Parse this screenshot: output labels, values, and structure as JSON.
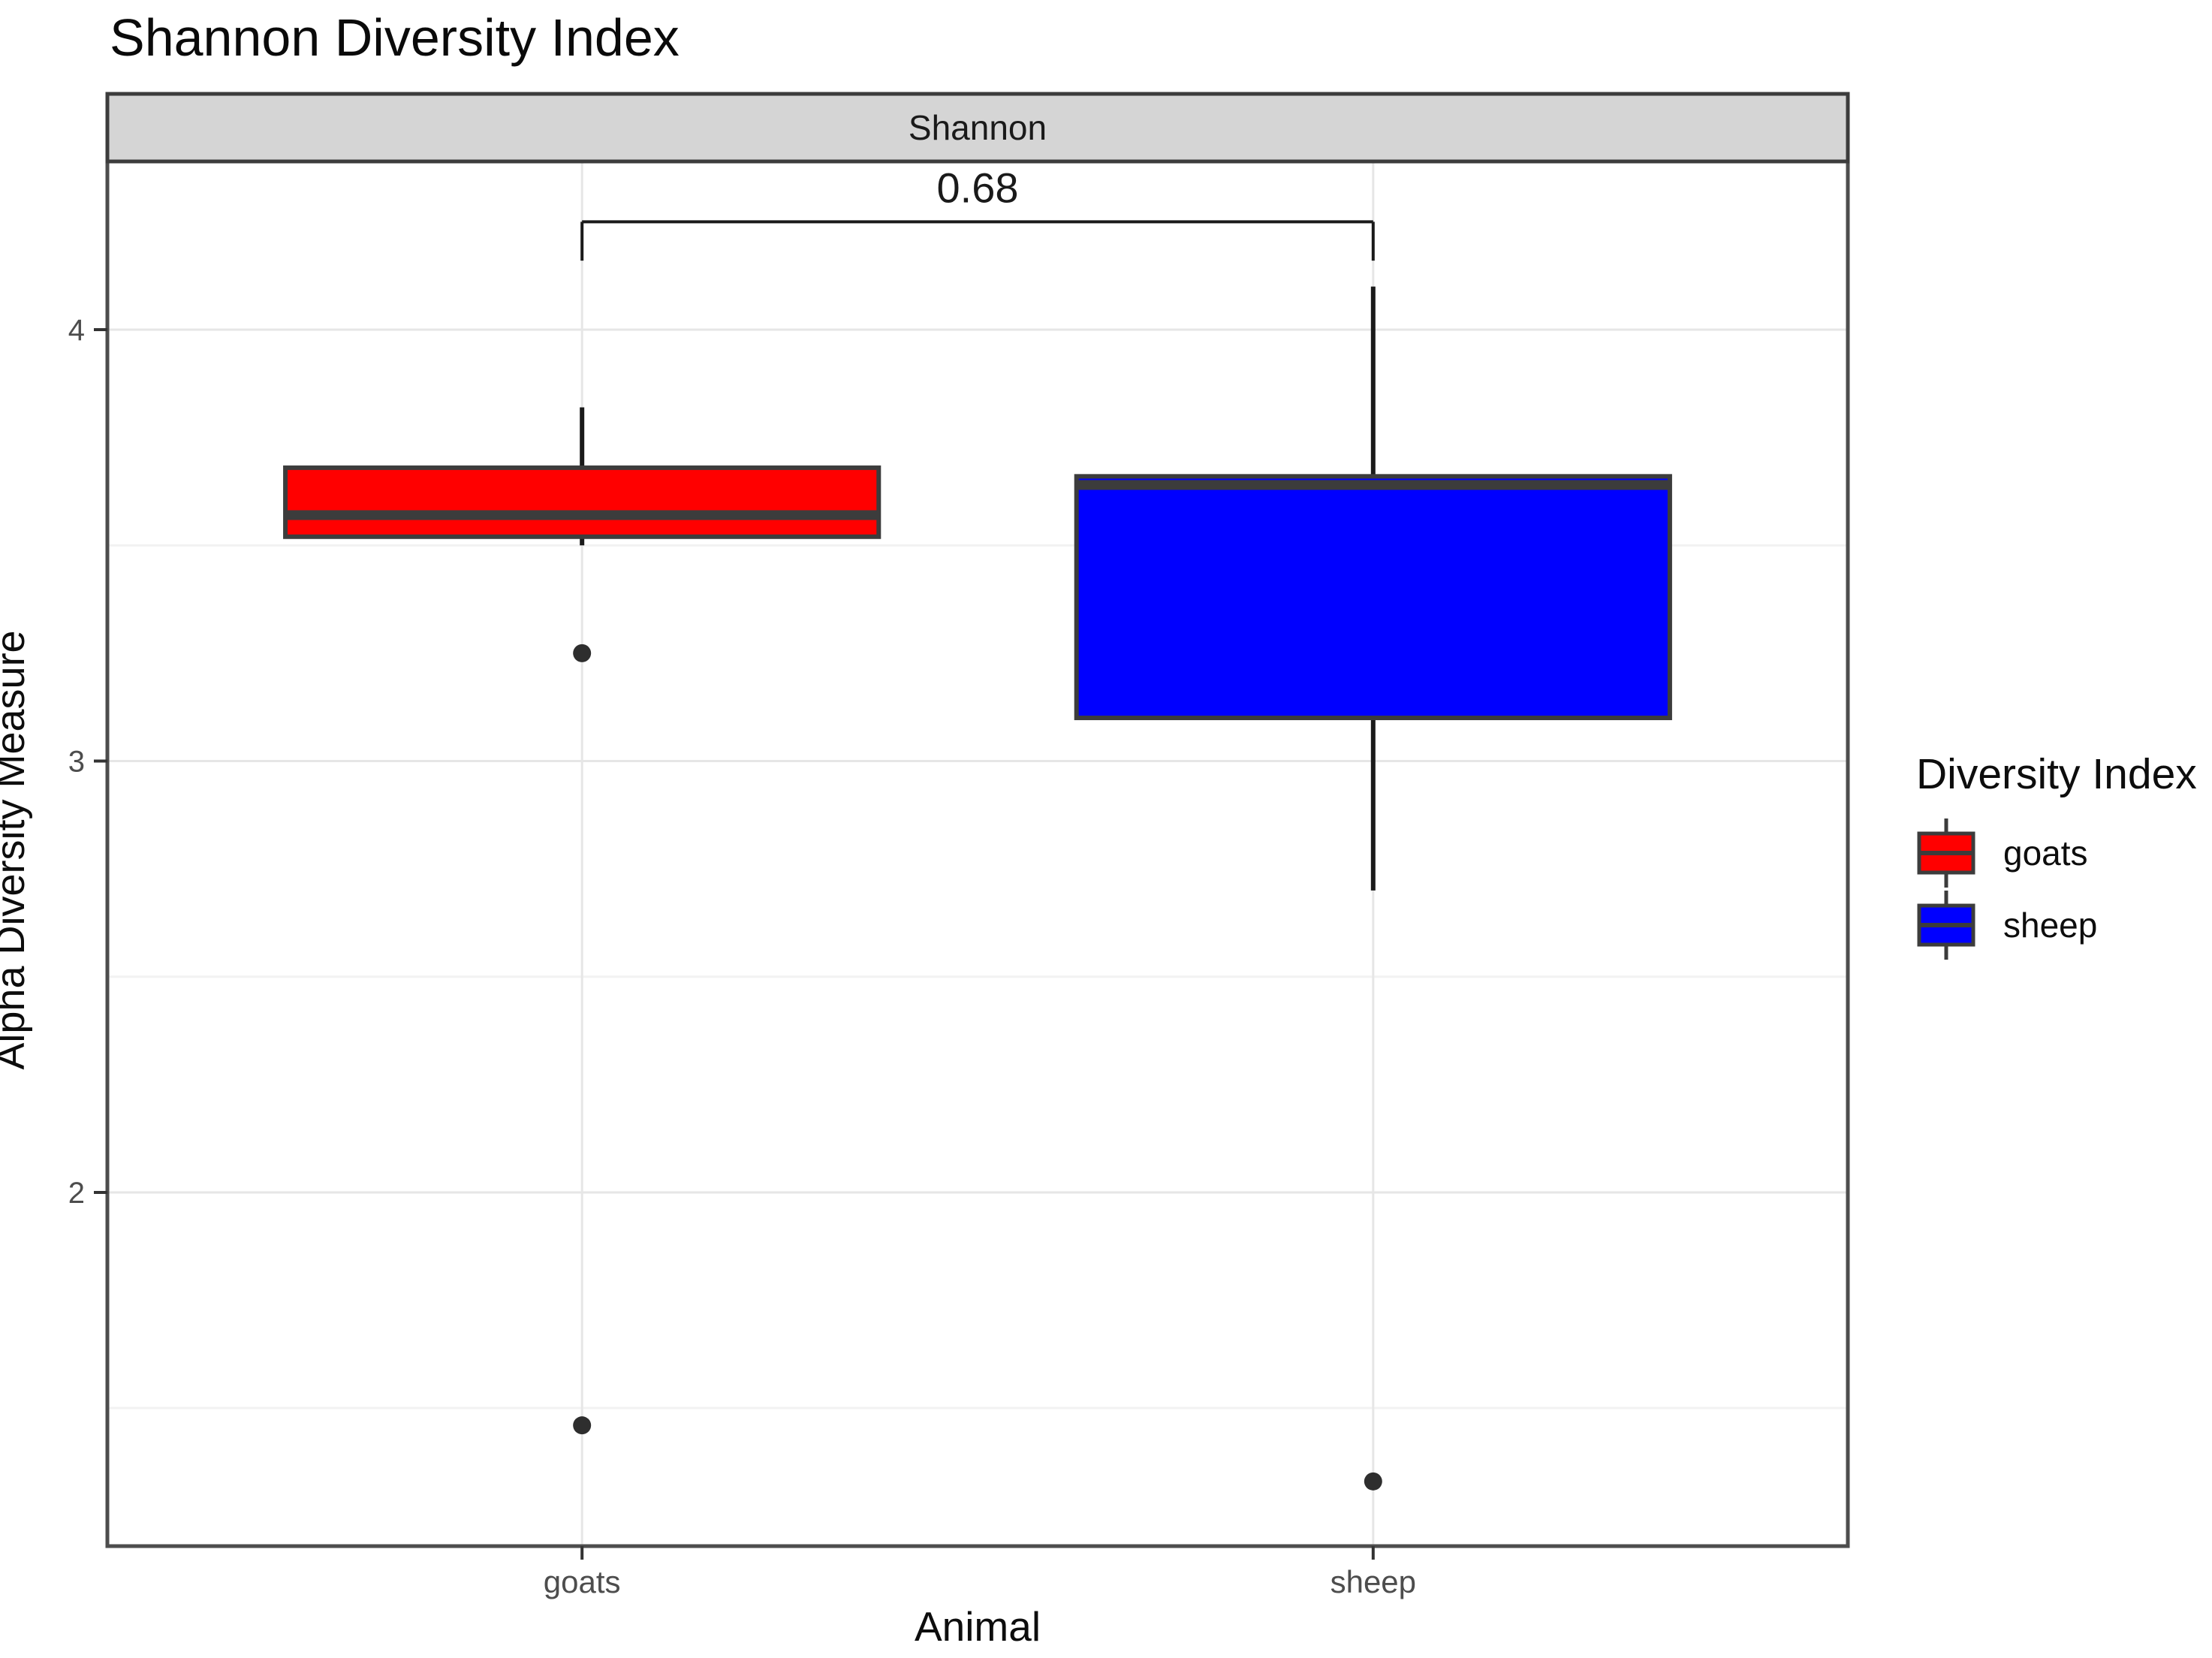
{
  "legend": {
    "title": "Diversity Index"
  },
  "chart_data": {
    "type": "boxplot",
    "title": "Shannon Diversity Index",
    "facet_label": "Shannon",
    "xlabel": "Animal",
    "ylabel": "Alpha Diversity Measure",
    "categories": [
      "goats",
      "sheep"
    ],
    "ylim": [
      1.18,
      4.39
    ],
    "yticks_major": [
      4,
      3,
      2
    ],
    "yticks_minor": [
      3.5,
      2.5,
      1.5
    ],
    "grid": "on",
    "legend_position": "right",
    "series": [
      {
        "name": "goats",
        "color": "#ff0000",
        "q1": 3.52,
        "median": 3.57,
        "q3": 3.68,
        "whisker_low": 3.5,
        "whisker_high": 3.82,
        "outliers": [
          3.25,
          1.46
        ]
      },
      {
        "name": "sheep",
        "color": "#0000ff",
        "q1": 3.1,
        "median": 3.64,
        "q3": 3.66,
        "whisker_low": 2.7,
        "whisker_high": 4.1,
        "outliers": [
          1.33
        ]
      }
    ],
    "significance": {
      "label": "0.68",
      "between": [
        "goats",
        "sheep"
      ],
      "bar_y": 4.25,
      "tip_y": 4.16,
      "label_y": 4.33
    },
    "colors": {
      "box_border": "#3c3c3c",
      "whisker": "#1a1a1a",
      "outlier": "#2e2e2e",
      "strip_fill": "#d5d5d5",
      "strip_border": "#3c3c3c",
      "panel_border": "#4d4d4d",
      "grid_major": "#e6e6e6",
      "grid_minor": "#f2f2f2",
      "tick": "#333333",
      "axis_text": "#4d4d4d",
      "strip_text": "#1a1a1a",
      "annotation_text": "#1a1a1a"
    }
  }
}
